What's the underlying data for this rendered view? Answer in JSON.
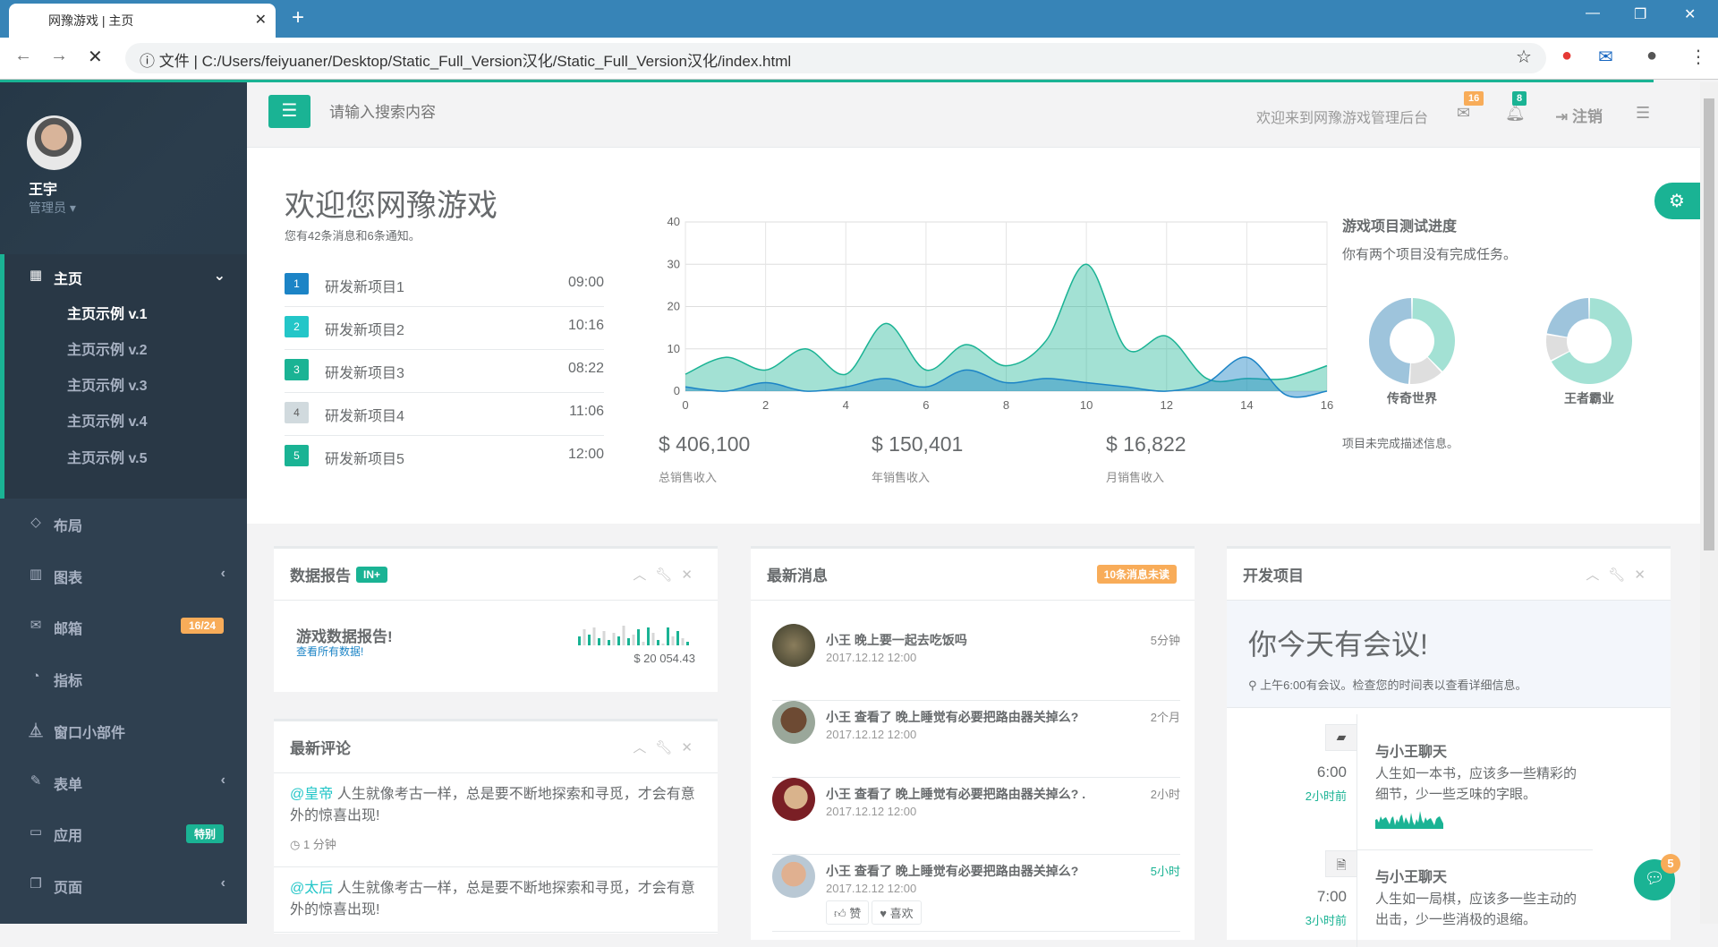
{
  "browser": {
    "tab_title": "网豫游戏 | 主页",
    "url_prefix": "文件",
    "url": "C:/Users/feiyuaner/Desktop/Static_Full_Version汉化/Static_Full_Version汉化/index.html"
  },
  "sidebar": {
    "user_name": "王宇",
    "user_role": "管理员",
    "home": {
      "label": "主页",
      "subitems": [
        "主页示例 v.1",
        "主页示例 v.2",
        "主页示例 v.3",
        "主页示例 v.4",
        "主页示例 v.5"
      ]
    },
    "items": [
      {
        "label": "布局",
        "icon": "diamond-icon"
      },
      {
        "label": "图表",
        "icon": "bar-chart-icon",
        "arrow": true
      },
      {
        "label": "邮箱",
        "icon": "envelope-icon",
        "badge": "16/24",
        "badge_color": "#f8ac59"
      },
      {
        "label": "指标",
        "icon": "pie-chart-icon"
      },
      {
        "label": "窗口小部件",
        "icon": "flask-icon"
      },
      {
        "label": "表单",
        "icon": "edit-icon",
        "arrow": true
      },
      {
        "label": "应用",
        "icon": "desktop-icon",
        "badge": "特别",
        "badge_color": "#1ab394"
      },
      {
        "label": "页面",
        "icon": "files-icon",
        "arrow": true
      }
    ]
  },
  "topnav": {
    "search_placeholder": "请输入搜索内容",
    "welcome": "欢迎来到网豫游戏管理后台",
    "mail_count": "16",
    "bell_count": "8",
    "logout": "注销"
  },
  "welcome": {
    "title": "欢迎您网豫游戏",
    "subtitle": "您有42条消息和6条通知。",
    "tasks": [
      {
        "n": "1",
        "name": "研发新项目1",
        "time": "09:00",
        "color": "#1c84c6"
      },
      {
        "n": "2",
        "name": "研发新项目2",
        "time": "10:16",
        "color": "#23c6c8"
      },
      {
        "n": "3",
        "name": "研发新项目3",
        "time": "08:22",
        "color": "#1ab394"
      },
      {
        "n": "4",
        "name": "研发新项目4",
        "time": "11:06",
        "color": "#d1dade"
      },
      {
        "n": "5",
        "name": "研发新项目5",
        "time": "12:00",
        "color": "#1ab394"
      }
    ],
    "stats": [
      {
        "value": "$ 406,100",
        "label": "总销售收入"
      },
      {
        "value": "$ 150,401",
        "label": "年销售收入"
      },
      {
        "value": "$ 16,822",
        "label": "月销售收入"
      }
    ]
  },
  "chart_data": [
    {
      "type": "area",
      "x": [
        0,
        1,
        2,
        3,
        4,
        5,
        6,
        7,
        8,
        9,
        10,
        11,
        12,
        13,
        14,
        15,
        16
      ],
      "xlim": [
        0,
        16
      ],
      "ylim": [
        0,
        40
      ],
      "xticks": [
        0,
        2,
        4,
        6,
        8,
        10,
        12,
        14,
        16
      ],
      "yticks": [
        0,
        10,
        20,
        30,
        40
      ],
      "grid": true,
      "series": [
        {
          "values": [
            4,
            8,
            5,
            10,
            4,
            16,
            5,
            11,
            6,
            12,
            30,
            10,
            13,
            3,
            3,
            3,
            6
          ],
          "color": "#1ab394"
        },
        {
          "values": [
            1,
            0,
            2,
            0,
            1,
            3,
            1,
            5,
            2,
            3,
            2,
            1,
            0,
            2,
            8,
            -1,
            0
          ],
          "color": "#1c84c6"
        }
      ]
    },
    {
      "type": "pie",
      "title": "传奇世界",
      "values": [
        37,
        13,
        48
      ],
      "colors": [
        "#a3e1d4",
        "#dedede",
        "#9ec4dc"
      ]
    },
    {
      "type": "pie",
      "title": "王者霸业",
      "values": [
        66,
        10,
        22
      ],
      "colors": [
        "#a3e1d4",
        "#dedede",
        "#9ec4dc"
      ]
    }
  ],
  "progress": {
    "title": "游戏项目测试进度",
    "subtitle": "你有两个项目没有完成任务。",
    "note": "项目未完成描述信息。"
  },
  "report": {
    "title": "数据报告",
    "label": "IN+",
    "heading": "游戏数据报告!",
    "link": "查看所有数据!",
    "amount": "$ 20 054.43"
  },
  "comments": {
    "title": "最新评论",
    "items": [
      {
        "user": "@皇帝",
        "text": "人生就像考古一样，总是要不断地探索和寻觅，才会有意外的惊喜出现!",
        "time": "1 分钟"
      },
      {
        "user": "@太后",
        "text": "人生就像考古一样，总是要不断地探索和寻觅，才会有意外的惊喜出现!"
      }
    ]
  },
  "messages": {
    "title": "最新消息",
    "badge": "10条消息未读",
    "items": [
      {
        "text": "小王 晚上要一起去吃饭吗",
        "date": "2017.12.12 12:00",
        "ago": "5分钟"
      },
      {
        "text": "小王 查看了 晚上睡觉有必要把路由器关掉么?",
        "date": "2017.12.12 12:00",
        "ago": "2个月"
      },
      {
        "text": "小王 查看了 晚上睡觉有必要把路由器关掉么? .",
        "date": "2017.12.12 12:00",
        "ago": "2小时"
      },
      {
        "text": "小王 查看了 晚上睡觉有必要把路由器关掉么?",
        "date": "2017.12.12 12:00",
        "ago": "5小时"
      }
    ],
    "like": "赞",
    "love": "喜欢"
  },
  "dev": {
    "title": "开发项目",
    "meeting": "你今天有会议!",
    "meeting_note": "上午6:00有会议。检查您的时间表以查看详细信息。",
    "timeline": [
      {
        "time": "6:00",
        "ago": "2小时前",
        "title": "与小王聊天",
        "text": "人生如一本书，应该多一些精彩的细节，少一些乏味的字眼。"
      },
      {
        "time": "7:00",
        "ago": "3小时前",
        "title": "与小王聊天",
        "text": "人生如一局棋，应该多一些主动的出击，少一些消极的退缩。"
      }
    ]
  },
  "chat": {
    "count": "5"
  }
}
